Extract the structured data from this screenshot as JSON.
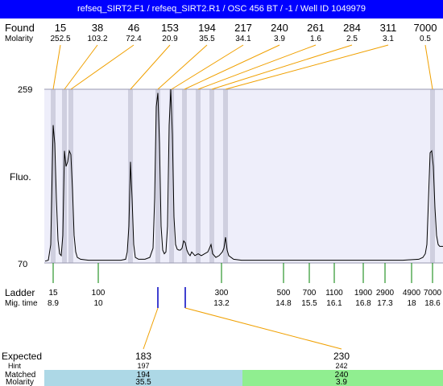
{
  "header": {
    "title": "refseq_SIRT2.F1 / refseq_SIRT2.R1 / OSC 456 BT / -1 / Well ID 1049979"
  },
  "labels": {
    "found": "Found",
    "molarity": "Molarity",
    "fluo": "Fluo.",
    "ladder": "Ladder",
    "mig_time": "Mig. time",
    "expected": "Expected",
    "hint": "Hint",
    "matched": "Matched",
    "molarity_bottom": "Molarity"
  },
  "colors": {
    "header_bg": "#0000ff",
    "plot_bg": "#eeeefa",
    "band": "#cfcfdf",
    "found_leader": "#f0a000",
    "ladder_leader": "#008000",
    "expected_marker": "#0000c0",
    "match1_bg": "#add8e6",
    "match2_bg": "#90ee90"
  },
  "chart_data": {
    "type": "line",
    "title": "refseq_SIRT2.F1 / refseq_SIRT2.R1 / OSC 456 BT / -1 / Well ID 1049979",
    "ylabel": "Fluo.",
    "ylim": [
      70,
      259
    ],
    "found": [
      {
        "size": "15",
        "molarity": "252.5",
        "x": 66
      },
      {
        "size": "38",
        "molarity": "103.2",
        "x": 80
      },
      {
        "size": "46",
        "molarity": "72.4",
        "x": 88
      },
      {
        "size": "153",
        "molarity": "20.9",
        "x": 162
      },
      {
        "size": "194",
        "molarity": "35.5",
        "x": 196
      },
      {
        "size": "217",
        "molarity": "34.1",
        "x": 213
      },
      {
        "size": "240",
        "molarity": "3.9",
        "x": 229
      },
      {
        "size": "261",
        "molarity": "1.6",
        "x": 246
      },
      {
        "size": "284",
        "molarity": "2.5",
        "x": 263
      },
      {
        "size": "311",
        "molarity": "3.1",
        "x": 280
      },
      {
        "size": "7000",
        "molarity": "0.5",
        "x": 537
      }
    ],
    "ladder": [
      {
        "size": "15",
        "time": "8.9"
      },
      {
        "size": "100",
        "time": "10"
      },
      {
        "size": "300",
        "time": "13.2"
      },
      {
        "size": "500",
        "time": "14.8"
      },
      {
        "size": "700",
        "time": "15.5"
      },
      {
        "size": "1100",
        "time": "16.1"
      },
      {
        "size": "1900",
        "time": "16.8"
      },
      {
        "size": "2900",
        "time": "17.3"
      },
      {
        "size": "4900",
        "time": "18"
      },
      {
        "size": "7000",
        "time": "18.6"
      }
    ],
    "trace": [
      [
        56,
        72
      ],
      [
        60,
        73
      ],
      [
        63,
        90
      ],
      [
        66,
        220
      ],
      [
        68,
        200
      ],
      [
        70,
        140
      ],
      [
        72,
        95
      ],
      [
        74,
        80
      ],
      [
        76,
        78
      ],
      [
        78,
        100
      ],
      [
        80,
        192
      ],
      [
        82,
        175
      ],
      [
        84,
        180
      ],
      [
        86,
        192
      ],
      [
        88,
        188
      ],
      [
        90,
        150
      ],
      [
        92,
        100
      ],
      [
        94,
        82
      ],
      [
        96,
        76
      ],
      [
        100,
        74
      ],
      [
        110,
        73
      ],
      [
        120,
        73
      ],
      [
        130,
        73
      ],
      [
        140,
        73
      ],
      [
        150,
        73
      ],
      [
        156,
        74
      ],
      [
        158,
        82
      ],
      [
        160,
        110
      ],
      [
        162,
        180
      ],
      [
        164,
        140
      ],
      [
        166,
        90
      ],
      [
        168,
        76
      ],
      [
        172,
        74
      ],
      [
        180,
        74
      ],
      [
        186,
        76
      ],
      [
        190,
        86
      ],
      [
        192,
        140
      ],
      [
        194,
        240
      ],
      [
        196,
        255
      ],
      [
        198,
        200
      ],
      [
        200,
        110
      ],
      [
        202,
        84
      ],
      [
        204,
        80
      ],
      [
        206,
        82
      ],
      [
        208,
        110
      ],
      [
        210,
        220
      ],
      [
        212,
        259
      ],
      [
        214,
        210
      ],
      [
        216,
        120
      ],
      [
        218,
        90
      ],
      [
        220,
        85
      ],
      [
        222,
        84
      ],
      [
        224,
        84
      ],
      [
        226,
        86
      ],
      [
        228,
        94
      ],
      [
        230,
        92
      ],
      [
        232,
        84
      ],
      [
        234,
        80
      ],
      [
        236,
        78
      ],
      [
        238,
        82
      ],
      [
        240,
        80
      ],
      [
        242,
        78
      ],
      [
        246,
        80
      ],
      [
        250,
        78
      ],
      [
        254,
        80
      ],
      [
        258,
        82
      ],
      [
        262,
        90
      ],
      [
        264,
        80
      ],
      [
        268,
        76
      ],
      [
        272,
        78
      ],
      [
        276,
        82
      ],
      [
        278,
        86
      ],
      [
        280,
        98
      ],
      [
        282,
        84
      ],
      [
        284,
        78
      ],
      [
        290,
        74
      ],
      [
        300,
        73
      ],
      [
        320,
        73
      ],
      [
        350,
        73
      ],
      [
        380,
        73
      ],
      [
        410,
        73
      ],
      [
        440,
        73
      ],
      [
        470,
        73
      ],
      [
        500,
        73
      ],
      [
        520,
        74
      ],
      [
        525,
        76
      ],
      [
        528,
        80
      ],
      [
        530,
        90
      ],
      [
        532,
        140
      ],
      [
        534,
        190
      ],
      [
        536,
        192
      ],
      [
        538,
        175
      ],
      [
        540,
        130
      ],
      [
        542,
        100
      ],
      [
        544,
        90
      ],
      [
        546,
        88
      ],
      [
        548,
        88
      ],
      [
        550,
        88
      ]
    ],
    "expected": [
      {
        "size": "183",
        "hint": "197",
        "matched": "194",
        "molarity": "35.5",
        "x": 196
      },
      {
        "size": "230",
        "hint": "242",
        "matched": "240",
        "molarity": "3.9",
        "x": 230
      }
    ]
  }
}
